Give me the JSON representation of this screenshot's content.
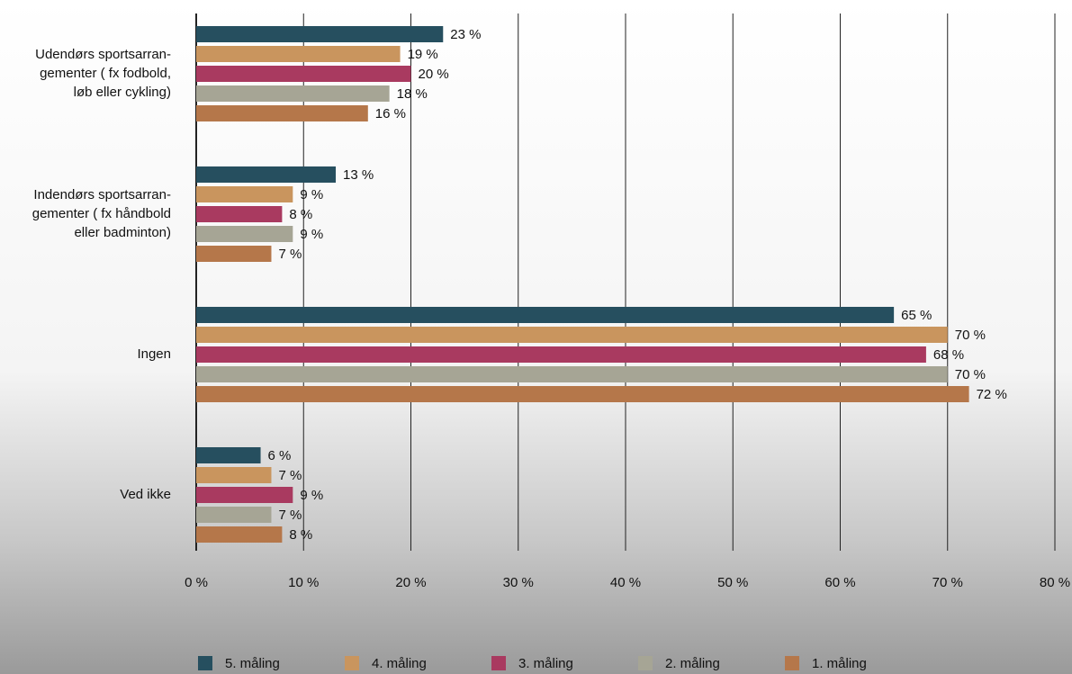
{
  "chart_data": {
    "type": "bar",
    "orientation": "horizontal",
    "categories": [
      "Udendørs sportsarran-\ngementer ( fx fodbold,\nløb eller cykling)",
      "Indendørs sportsarran-\ngementer ( fx håndbold\neller badminton)",
      "Ingen",
      "Ved ikke"
    ],
    "series": [
      {
        "name": "5. måling",
        "color": "#264f5f",
        "values": [
          23,
          13,
          65,
          6
        ],
        "value_labels": [
          "23 %",
          "13 %",
          "65 %",
          "6 %"
        ]
      },
      {
        "name": "4. måling",
        "color": "#c9955e",
        "values": [
          19,
          9,
          70,
          7
        ],
        "value_labels": [
          "19 %",
          "9 %",
          "70 %",
          "7 %"
        ]
      },
      {
        "name": "3. måling",
        "color": "#a93a60",
        "values": [
          20,
          8,
          68,
          9
        ],
        "value_labels": [
          "20 %",
          "8 %",
          "68 %",
          "9 %"
        ]
      },
      {
        "name": "2. måling",
        "color": "#a6a595",
        "values": [
          18,
          9,
          70,
          7
        ],
        "value_labels": [
          "18 %",
          "9 %",
          "70 %",
          "7 %"
        ]
      },
      {
        "name": "1. måling",
        "color": "#b5774a",
        "values": [
          16,
          7,
          72,
          8
        ],
        "value_labels": [
          "16 %",
          "7 %",
          "72 %",
          "8 %"
        ]
      }
    ],
    "xlim": [
      0,
      80
    ],
    "xticks": [
      {
        "value": 0,
        "label": "0 %"
      },
      {
        "value": 10,
        "label": "10 %"
      },
      {
        "value": 20,
        "label": "20 %"
      },
      {
        "value": 30,
        "label": "30 %"
      },
      {
        "value": 40,
        "label": "40 %"
      },
      {
        "value": 50,
        "label": "50 %"
      },
      {
        "value": 60,
        "label": "60 %"
      },
      {
        "value": 70,
        "label": "70 %"
      },
      {
        "value": 80,
        "label": "80 %"
      }
    ],
    "grid": true,
    "legend": "bottom"
  }
}
